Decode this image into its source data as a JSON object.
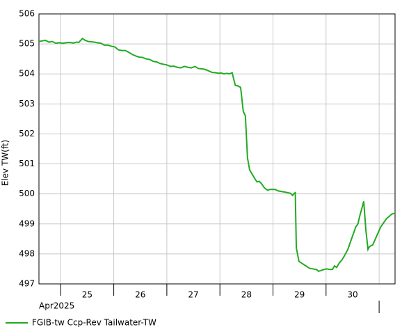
{
  "chart_data": {
    "type": "line",
    "y_label": "Elev TW(ft)",
    "x_period_label": "Apr2025",
    "xlim": [
      24.59,
      31.3
    ],
    "xticks": [
      25,
      26,
      27,
      28,
      29,
      30,
      31
    ],
    "xlabels": [
      {
        "value": 25.5,
        "label": "25"
      },
      {
        "value": 26.5,
        "label": "26"
      },
      {
        "value": 27.5,
        "label": "27"
      },
      {
        "value": 28.5,
        "label": "28"
      },
      {
        "value": 29.5,
        "label": "29"
      },
      {
        "value": 30.5,
        "label": "30"
      }
    ],
    "ylim": [
      497,
      506
    ],
    "yticks": [
      497,
      498,
      499,
      500,
      501,
      502,
      503,
      504,
      505,
      506
    ],
    "grid": true,
    "legend": "bottom-left",
    "x": [
      24.59,
      24.65,
      24.71,
      24.78,
      24.84,
      24.91,
      24.97,
      25.04,
      25.1,
      25.17,
      25.24,
      25.3,
      25.34,
      25.41,
      25.46,
      25.52,
      25.63,
      25.69,
      25.76,
      25.82,
      25.89,
      25.96,
      26.02,
      26.09,
      26.15,
      26.22,
      26.28,
      26.35,
      26.41,
      26.48,
      26.54,
      26.61,
      26.68,
      26.74,
      26.81,
      26.87,
      26.94,
      27.0,
      27.07,
      27.13,
      27.2,
      27.26,
      27.33,
      27.4,
      27.46,
      27.53,
      27.59,
      27.66,
      27.72,
      27.79,
      27.85,
      27.92,
      27.98,
      28.02,
      28.08,
      28.13,
      28.18,
      28.23,
      28.29,
      28.34,
      28.39,
      28.44,
      28.48,
      28.52,
      28.56,
      28.61,
      28.66,
      28.7,
      28.74,
      28.78,
      28.84,
      28.9,
      28.94,
      28.99,
      29.04,
      29.1,
      29.16,
      29.23,
      29.28,
      29.33,
      29.37,
      29.4,
      29.42,
      29.44,
      29.49,
      29.55,
      29.62,
      29.69,
      29.75,
      29.82,
      29.86,
      29.91,
      29.96,
      30.01,
      30.07,
      30.12,
      30.16,
      30.2,
      30.25,
      30.3,
      30.35,
      30.41,
      30.46,
      30.51,
      30.56,
      30.6,
      30.64,
      30.68,
      30.71,
      30.75,
      30.79,
      30.82,
      30.88,
      30.93,
      30.98,
      31.03,
      31.09,
      31.14,
      31.19,
      31.24,
      31.3
    ],
    "series": [
      {
        "name": "FGIB-tw Ccp-Rev Tailwater-TW",
        "color": "#22aa22",
        "values": [
          505.08,
          505.1,
          505.12,
          505.06,
          505.08,
          505.02,
          505.04,
          505.02,
          505.04,
          505.05,
          505.03,
          505.06,
          505.05,
          505.18,
          505.12,
          505.08,
          505.06,
          505.04,
          505.02,
          504.96,
          504.96,
          504.92,
          504.9,
          504.8,
          504.78,
          504.78,
          504.72,
          504.65,
          504.6,
          504.56,
          504.55,
          504.5,
          504.48,
          504.42,
          504.4,
          504.35,
          504.32,
          504.3,
          504.25,
          504.26,
          504.22,
          504.2,
          504.25,
          504.22,
          504.2,
          504.25,
          504.18,
          504.17,
          504.15,
          504.1,
          504.05,
          504.04,
          504.02,
          504.03,
          504.0,
          504.02,
          504.0,
          504.04,
          503.62,
          503.6,
          503.55,
          502.75,
          502.6,
          501.2,
          500.8,
          500.65,
          500.5,
          500.4,
          500.42,
          500.35,
          500.2,
          500.12,
          500.15,
          500.15,
          500.15,
          500.1,
          500.08,
          500.06,
          500.04,
          500.02,
          499.95,
          500.02,
          500.04,
          498.2,
          497.75,
          497.68,
          497.6,
          497.52,
          497.5,
          497.48,
          497.42,
          497.45,
          497.48,
          497.5,
          497.48,
          497.48,
          497.6,
          497.55,
          497.7,
          497.8,
          497.95,
          498.15,
          498.4,
          498.65,
          498.9,
          499.0,
          499.3,
          499.55,
          499.75,
          498.8,
          498.15,
          498.25,
          498.3,
          498.5,
          498.7,
          498.9,
          499.05,
          499.18,
          499.25,
          499.33,
          499.35
        ]
      }
    ]
  }
}
